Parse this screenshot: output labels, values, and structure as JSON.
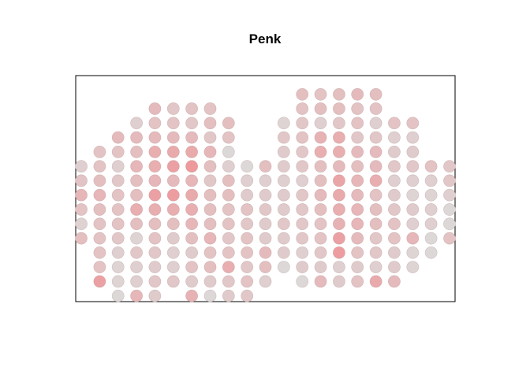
{
  "chart_data": {
    "type": "scatter",
    "title": "Penk",
    "xlabel": "",
    "ylabel": "",
    "grid": false,
    "legend": "none",
    "axes_visible": false,
    "color_scale": {
      "low": "#dcdcdc",
      "high": "#f2888c"
    },
    "x_range": [
      -0.3,
      20.3
    ],
    "y_range": [
      -0.4,
      15.3
    ],
    "point_fields": [
      "x",
      "y",
      "expression_0_to_1"
    ],
    "points": [
      [
        0,
        4,
        0.35
      ],
      [
        0,
        5,
        0.12
      ],
      [
        0,
        6,
        0.3
      ],
      [
        0,
        7,
        0.45
      ],
      [
        0,
        8,
        0.28
      ],
      [
        0,
        9,
        0.15
      ],
      [
        1,
        1,
        0.7
      ],
      [
        1,
        2,
        0.3
      ],
      [
        1,
        3,
        0.3
      ],
      [
        1,
        4,
        0.3
      ],
      [
        1,
        5,
        0.3
      ],
      [
        1,
        6,
        0.35
      ],
      [
        1,
        7,
        0.45
      ],
      [
        1,
        8,
        0.35
      ],
      [
        1,
        9,
        0.3
      ],
      [
        1,
        10,
        0.3
      ],
      [
        2,
        0,
        0.05
      ],
      [
        2,
        1,
        0.1
      ],
      [
        2,
        2,
        0.1
      ],
      [
        2,
        3,
        0.15
      ],
      [
        2,
        4,
        0.25
      ],
      [
        2,
        5,
        0.3
      ],
      [
        2,
        6,
        0.3
      ],
      [
        2,
        7,
        0.3
      ],
      [
        2,
        8,
        0.25
      ],
      [
        2,
        9,
        0.15
      ],
      [
        2,
        10,
        0.3
      ],
      [
        2,
        11,
        0.4
      ],
      [
        3,
        0,
        0.45
      ],
      [
        3,
        1,
        0.15
      ],
      [
        3,
        2,
        0.15
      ],
      [
        3,
        3,
        0.25
      ],
      [
        3,
        4,
        0.1
      ],
      [
        3,
        5,
        0.35
      ],
      [
        3,
        6,
        0.55
      ],
      [
        3,
        7,
        0.35
      ],
      [
        3,
        8,
        0.35
      ],
      [
        3,
        9,
        0.45
      ],
      [
        3,
        10,
        0.35
      ],
      [
        3,
        11,
        0.4
      ],
      [
        3,
        12,
        0.15
      ],
      [
        4,
        0,
        0.2
      ],
      [
        4,
        1,
        0.25
      ],
      [
        4,
        2,
        0.2
      ],
      [
        4,
        3,
        0.25
      ],
      [
        4,
        4,
        0.3
      ],
      [
        4,
        5,
        0.35
      ],
      [
        4,
        6,
        0.55
      ],
      [
        4,
        7,
        0.7
      ],
      [
        4,
        8,
        0.45
      ],
      [
        4,
        9,
        0.55
      ],
      [
        4,
        10,
        0.55
      ],
      [
        4,
        11,
        0.4
      ],
      [
        4,
        12,
        0.3
      ],
      [
        4,
        13,
        0.4
      ],
      [
        5,
        1,
        0.25
      ],
      [
        5,
        2,
        0.15
      ],
      [
        5,
        3,
        0.15
      ],
      [
        5,
        4,
        0.2
      ],
      [
        5,
        5,
        0.35
      ],
      [
        5,
        6,
        0.55
      ],
      [
        5,
        7,
        0.75
      ],
      [
        5,
        8,
        0.4
      ],
      [
        5,
        9,
        0.7
      ],
      [
        5,
        10,
        0.6
      ],
      [
        5,
        11,
        0.4
      ],
      [
        5,
        12,
        0.3
      ],
      [
        5,
        13,
        0.25
      ],
      [
        6,
        0,
        0.5
      ],
      [
        6,
        1,
        0.2
      ],
      [
        6,
        2,
        0.3
      ],
      [
        6,
        3,
        0.2
      ],
      [
        6,
        4,
        0.35
      ],
      [
        6,
        5,
        0.45
      ],
      [
        6,
        6,
        0.55
      ],
      [
        6,
        7,
        0.6
      ],
      [
        6,
        8,
        0.45
      ],
      [
        6,
        9,
        0.8
      ],
      [
        6,
        10,
        0.6
      ],
      [
        6,
        11,
        0.4
      ],
      [
        6,
        12,
        0.25
      ],
      [
        6,
        13,
        0.3
      ],
      [
        7,
        0,
        0.05
      ],
      [
        7,
        1,
        0.2
      ],
      [
        7,
        2,
        0.35
      ],
      [
        7,
        3,
        0.3
      ],
      [
        7,
        4,
        0.45
      ],
      [
        7,
        5,
        0.35
      ],
      [
        7,
        6,
        0.35
      ],
      [
        7,
        7,
        0.35
      ],
      [
        7,
        8,
        0.25
      ],
      [
        7,
        9,
        0.35
      ],
      [
        7,
        10,
        0.45
      ],
      [
        7,
        11,
        0.25
      ],
      [
        7,
        12,
        0.35
      ],
      [
        7,
        13,
        0.3
      ],
      [
        8,
        0,
        0.2
      ],
      [
        8,
        1,
        0.25
      ],
      [
        8,
        2,
        0.55
      ],
      [
        8,
        3,
        0.3
      ],
      [
        8,
        4,
        0.25
      ],
      [
        8,
        5,
        0.3
      ],
      [
        8,
        6,
        0.3
      ],
      [
        8,
        7,
        0.35
      ],
      [
        8,
        8,
        0.35
      ],
      [
        8,
        9,
        0.15
      ],
      [
        8,
        10,
        0.05
      ],
      [
        8,
        11,
        0.3
      ],
      [
        8,
        12,
        0.35
      ],
      [
        9,
        0,
        0.25
      ],
      [
        9,
        1,
        0.3
      ],
      [
        9,
        2,
        0.25
      ],
      [
        9,
        3,
        0.3
      ],
      [
        9,
        4,
        0.3
      ],
      [
        9,
        5,
        0.25
      ],
      [
        9,
        6,
        0.3
      ],
      [
        9,
        7,
        0.2
      ],
      [
        9,
        8,
        0.15
      ],
      [
        9,
        9,
        0.05
      ],
      [
        10,
        1,
        0.15
      ],
      [
        10,
        2,
        0.35
      ],
      [
        10,
        3,
        0.4
      ],
      [
        10,
        4,
        0.2
      ],
      [
        10,
        5,
        0.2
      ],
      [
        10,
        6,
        0.25
      ],
      [
        10,
        7,
        0.2
      ],
      [
        10,
        8,
        0.15
      ],
      [
        10,
        9,
        0.35
      ],
      [
        11,
        2,
        0.05
      ],
      [
        11,
        3,
        0.2
      ],
      [
        11,
        4,
        0.2
      ],
      [
        11,
        5,
        0.25
      ],
      [
        11,
        6,
        0.2
      ],
      [
        11,
        7,
        0.2
      ],
      [
        11,
        8,
        0.15
      ],
      [
        11,
        9,
        0.2
      ],
      [
        11,
        10,
        0.2
      ],
      [
        11,
        11,
        0.25
      ],
      [
        11,
        12,
        0.1
      ],
      [
        12,
        1,
        0.05
      ],
      [
        12,
        2,
        0.2
      ],
      [
        12,
        3,
        0.15
      ],
      [
        12,
        4,
        0.25
      ],
      [
        12,
        5,
        0.25
      ],
      [
        12,
        6,
        0.25
      ],
      [
        12,
        7,
        0.25
      ],
      [
        12,
        8,
        0.15
      ],
      [
        12,
        9,
        0.25
      ],
      [
        12,
        10,
        0.25
      ],
      [
        12,
        11,
        0.3
      ],
      [
        12,
        12,
        0.25
      ],
      [
        12,
        13,
        0.3
      ],
      [
        12,
        14,
        0.35
      ],
      [
        13,
        1,
        0.4
      ],
      [
        13,
        2,
        0.2
      ],
      [
        13,
        3,
        0.25
      ],
      [
        13,
        4,
        0.3
      ],
      [
        13,
        5,
        0.3
      ],
      [
        13,
        6,
        0.35
      ],
      [
        13,
        7,
        0.4
      ],
      [
        13,
        8,
        0.35
      ],
      [
        13,
        9,
        0.35
      ],
      [
        13,
        10,
        0.55
      ],
      [
        13,
        11,
        0.5
      ],
      [
        13,
        12,
        0.15
      ],
      [
        13,
        13,
        0.35
      ],
      [
        13,
        14,
        0.3
      ],
      [
        14,
        1,
        0.2
      ],
      [
        14,
        2,
        0.15
      ],
      [
        14,
        3,
        0.75
      ],
      [
        14,
        4,
        0.7
      ],
      [
        14,
        5,
        0.5
      ],
      [
        14,
        6,
        0.55
      ],
      [
        14,
        7,
        0.6
      ],
      [
        14,
        8,
        0.65
      ],
      [
        14,
        9,
        0.4
      ],
      [
        14,
        10,
        0.55
      ],
      [
        14,
        11,
        0.55
      ],
      [
        14,
        12,
        0.25
      ],
      [
        14,
        13,
        0.35
      ],
      [
        14,
        14,
        0.35
      ],
      [
        15,
        1,
        0.3
      ],
      [
        15,
        2,
        0.2
      ],
      [
        15,
        3,
        0.3
      ],
      [
        15,
        4,
        0.4
      ],
      [
        15,
        5,
        0.45
      ],
      [
        15,
        6,
        0.45
      ],
      [
        15,
        7,
        0.4
      ],
      [
        15,
        8,
        0.45
      ],
      [
        15,
        9,
        0.35
      ],
      [
        15,
        10,
        0.4
      ],
      [
        15,
        11,
        0.25
      ],
      [
        15,
        12,
        0.3
      ],
      [
        15,
        13,
        0.3
      ],
      [
        15,
        14,
        0.4
      ],
      [
        16,
        1,
        0.6
      ],
      [
        16,
        2,
        0.15
      ],
      [
        16,
        3,
        0.25
      ],
      [
        16,
        4,
        0.25
      ],
      [
        16,
        5,
        0.35
      ],
      [
        16,
        6,
        0.35
      ],
      [
        16,
        7,
        0.3
      ],
      [
        16,
        8,
        0.55
      ],
      [
        16,
        9,
        0.4
      ],
      [
        16,
        10,
        0.4
      ],
      [
        16,
        11,
        0.25
      ],
      [
        16,
        12,
        0.15
      ],
      [
        16,
        13,
        0.3
      ],
      [
        16,
        14,
        0.35
      ],
      [
        17,
        1,
        0.4
      ],
      [
        17,
        2,
        0.2
      ],
      [
        17,
        3,
        0.2
      ],
      [
        17,
        4,
        0.3
      ],
      [
        17,
        5,
        0.3
      ],
      [
        17,
        6,
        0.25
      ],
      [
        17,
        7,
        0.2
      ],
      [
        17,
        8,
        0.15
      ],
      [
        17,
        9,
        0.25
      ],
      [
        17,
        10,
        0.2
      ],
      [
        17,
        11,
        0.15
      ],
      [
        17,
        12,
        0.3
      ],
      [
        18,
        2,
        0.1
      ],
      [
        18,
        3,
        0.1
      ],
      [
        18,
        4,
        0.45
      ],
      [
        18,
        5,
        0.15
      ],
      [
        18,
        6,
        0.2
      ],
      [
        18,
        7,
        0.1
      ],
      [
        18,
        8,
        0.15
      ],
      [
        18,
        9,
        0.25
      ],
      [
        18,
        10,
        0.2
      ],
      [
        18,
        11,
        0.15
      ],
      [
        18,
        12,
        0.3
      ],
      [
        19,
        3,
        0.05
      ],
      [
        19,
        4,
        0.05
      ],
      [
        19,
        5,
        0.15
      ],
      [
        19,
        6,
        0.15
      ],
      [
        19,
        7,
        0.1
      ],
      [
        19,
        8,
        0.15
      ],
      [
        19,
        9,
        0.3
      ],
      [
        20,
        4,
        0.3
      ],
      [
        20,
        5,
        0.05
      ],
      [
        20,
        6,
        0.05
      ],
      [
        20,
        7,
        0.15
      ],
      [
        20,
        8,
        0.25
      ],
      [
        20,
        9,
        0.25
      ]
    ]
  }
}
